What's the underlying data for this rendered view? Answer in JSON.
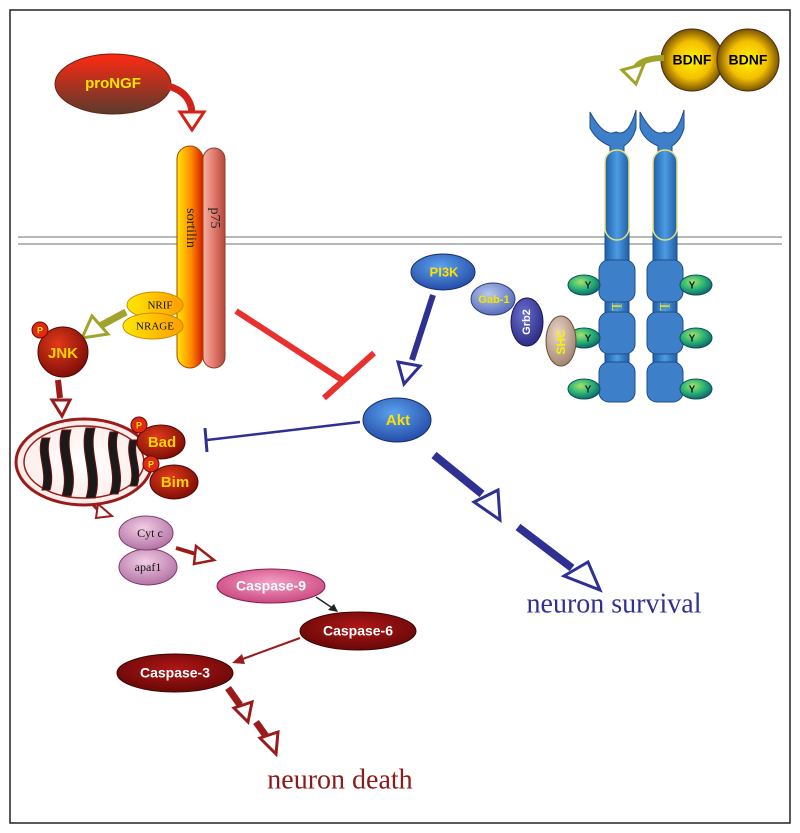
{
  "nodes": {
    "prongf": "proNGF",
    "bdnf_left": "BDNF",
    "bdnf_right": "BDNF",
    "sortilin": "sortilin",
    "p75": "p75",
    "trkb_left": "TrkB",
    "trkb_right": "TrkB",
    "nrif": "NRIF",
    "nrage": "NRAGE",
    "jnk": "JNK",
    "phospho": "P",
    "pi3k": "PI3K",
    "gab1": "Gab-1",
    "grb2": "Grb2",
    "shc": "SHC",
    "tyrosine": "Y",
    "akt": "Akt",
    "bad": "Bad",
    "bim": "Bim",
    "cytc": "Cyt c",
    "apaf1": "apaf1",
    "caspase9": "Caspase-9",
    "caspase6": "Caspase-6",
    "caspase3": "Caspase-3"
  },
  "outcomes": {
    "survival": "neuron survival",
    "death": "neuron death"
  },
  "colors": {
    "death_pathway": "#9b1b1b",
    "survival_pathway": "#2e3192",
    "inhibition": "#e8312f",
    "membrane": "#b8b8b8",
    "trkb": "#3d7fc8",
    "sortilin": "#f7931e",
    "p75": "#c9625a",
    "ligand": "#f2e600",
    "olive_arrow": "#a2a32a"
  }
}
